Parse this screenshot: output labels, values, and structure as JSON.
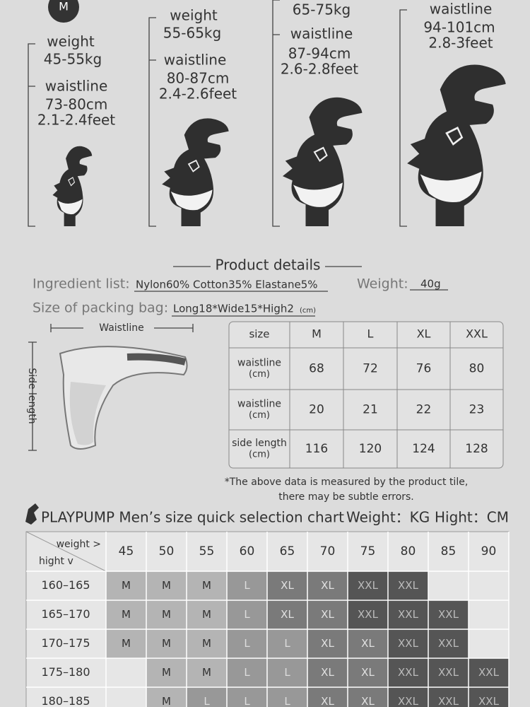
{
  "size_columns": [
    {
      "size": "M",
      "weight_label": "weight",
      "weight": "45-55kg",
      "waist_label": "waistline",
      "waist_cm": "73-80cm",
      "waist_feet": "2.1-2.4feet"
    },
    {
      "weight_label": "weight",
      "weight": "55-65kg",
      "waist_label": "waistline",
      "waist_cm": "80-87cm",
      "waist_feet": "2.4-2.6feet"
    },
    {
      "weight": "65-75kg",
      "waist_label": "waistline",
      "waist_cm": "87-94cm",
      "waist_feet": "2.6-2.8feet"
    },
    {
      "waist_label": "waistline",
      "waist_cm": "94-101cm",
      "waist_feet": "2.8-3feet"
    }
  ],
  "details": {
    "title": "Product details",
    "ingredient_label": "Ingredient list:",
    "ingredient": "Nylon60%  Cotton35% Elastane5%",
    "weight_label": "Weight:",
    "weight": "40g",
    "bag_label": "Size of packing bag:",
    "bag": "Long18*Wide15*High2",
    "bag_unit": "(cm)",
    "waistline": "Waistline",
    "side_length": "Side length"
  },
  "size_table": {
    "header": [
      "size",
      "M",
      "L",
      "XL",
      "XXL"
    ],
    "rows": [
      {
        "label": "waistline",
        "unit": "(cm)",
        "values": [
          68,
          72,
          76,
          80
        ]
      },
      {
        "label": "waistline",
        "unit": "(cm)",
        "values": [
          20,
          21,
          22,
          23
        ]
      },
      {
        "label": "side length",
        "unit": "(cm)",
        "values": [
          116,
          120,
          124,
          128
        ]
      }
    ]
  },
  "note": [
    "*The above data is measured by the product tile,",
    "there may be subtle errors."
  ],
  "quick_chart": {
    "title": "PLAYPUMP Men’s size quick selection chart",
    "weight_unit": "Weight：KG",
    "height_unit": "Hight：CM",
    "corner_top": "weight >",
    "corner_bottom": "hight v",
    "weights": [
      45,
      50,
      55,
      60,
      65,
      70,
      75,
      80,
      85,
      90
    ],
    "rows": [
      {
        "label": "160–165",
        "sizes": [
          "M",
          "M",
          "M",
          "L",
          "XL",
          "XL",
          "XXL",
          "XXL",
          null,
          null
        ]
      },
      {
        "label": "165–170",
        "sizes": [
          "M",
          "M",
          "M",
          "L",
          "XL",
          "XL",
          "XXL",
          "XXL",
          "XXL",
          null
        ]
      },
      {
        "label": "170–175",
        "sizes": [
          "M",
          "M",
          "M",
          "L",
          "L",
          "XL",
          "XL",
          "XXL",
          "XXL",
          null
        ]
      },
      {
        "label": "175–180",
        "sizes": [
          null,
          "M",
          "M",
          "L",
          "L",
          "XL",
          "XL",
          "XXL",
          "XXL",
          "XXL"
        ]
      },
      {
        "label": "180–185",
        "sizes": [
          null,
          "M",
          "L",
          "L",
          "L",
          "XL",
          "XL",
          "XXL",
          "XXL",
          "XXL"
        ]
      }
    ],
    "size_colors": {
      "M": {
        "fill": "#b4b4b4",
        "text": "#333333"
      },
      "L": {
        "fill": "#989898",
        "text": "#dddddd"
      },
      "XL": {
        "fill": "#7a7a7a",
        "text": "#e0e0e0"
      },
      "XXL": {
        "fill": "#555555",
        "text": "#bbbbbb"
      }
    }
  }
}
